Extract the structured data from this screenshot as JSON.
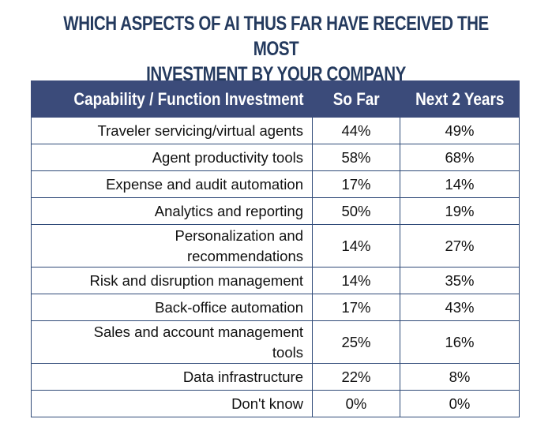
{
  "title": {
    "line1": "WHICH ASPECTS OF AI THUS FAR HAVE RECEIVED THE MOST",
    "line2": "INVESTMENT BY YOUR COMPANY"
  },
  "chart_data": {
    "type": "table",
    "title": "WHICH ASPECTS OF AI THUS FAR HAVE RECEIVED THE MOST INVESTMENT BY YOUR COMPANY",
    "columns": [
      "Capability / Function Investment",
      "So Far",
      "Next 2 Years"
    ],
    "rows": [
      {
        "label_lines": [
          "Traveler servicing/virtual agents"
        ],
        "so_far": "44%",
        "next_2_years": "49%"
      },
      {
        "label_lines": [
          "Agent productivity tools"
        ],
        "so_far": "58%",
        "next_2_years": "68%"
      },
      {
        "label_lines": [
          "Expense and audit automation"
        ],
        "so_far": "17%",
        "next_2_years": "14%"
      },
      {
        "label_lines": [
          "Analytics and reporting"
        ],
        "so_far": "50%",
        "next_2_years": "19%"
      },
      {
        "label_lines": [
          "Personalization and",
          "recommendations"
        ],
        "so_far": "14%",
        "next_2_years": "27%"
      },
      {
        "label_lines": [
          "Risk and disruption management"
        ],
        "so_far": "14%",
        "next_2_years": "35%"
      },
      {
        "label_lines": [
          "Back-office automation"
        ],
        "so_far": "17%",
        "next_2_years": "43%"
      },
      {
        "label_lines": [
          "Sales and account management",
          "tools"
        ],
        "so_far": "25%",
        "next_2_years": "16%"
      },
      {
        "label_lines": [
          "Data infrastructure"
        ],
        "so_far": "22%",
        "next_2_years": "8%"
      },
      {
        "label_lines": [
          "Don't know"
        ],
        "so_far": "0%",
        "next_2_years": "0%"
      }
    ]
  },
  "colors": {
    "title": "#243a5e",
    "header_bg": "#3b4b7a",
    "header_text": "#ffffff",
    "border": "#2f4a78"
  }
}
